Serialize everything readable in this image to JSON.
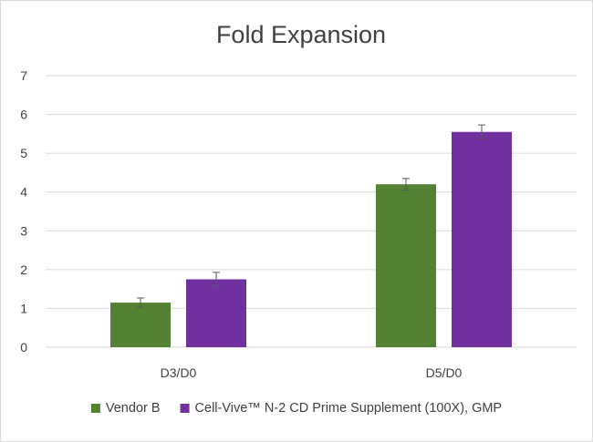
{
  "chart_data": {
    "type": "bar",
    "title": "Fold Expansion",
    "xlabel": "",
    "ylabel": "",
    "categories": [
      "D3/D0",
      "D5/D0"
    ],
    "series": [
      {
        "name": "Vendor B",
        "color": "#548235",
        "values": [
          1.15,
          4.2
        ],
        "errors": [
          0.12,
          0.15
        ]
      },
      {
        "name": "Cell-Vive™ N-2 CD Prime Supplement (100X), GMP",
        "color": "#7030A0",
        "values": [
          1.75,
          5.55
        ],
        "errors": [
          0.18,
          0.18
        ]
      }
    ],
    "ylim": [
      0,
      7
    ],
    "yticks": [
      "0",
      "1",
      "2",
      "3",
      "4",
      "5",
      "6",
      "7"
    ],
    "grid": true,
    "error_bars": true,
    "legend": "bottom"
  }
}
